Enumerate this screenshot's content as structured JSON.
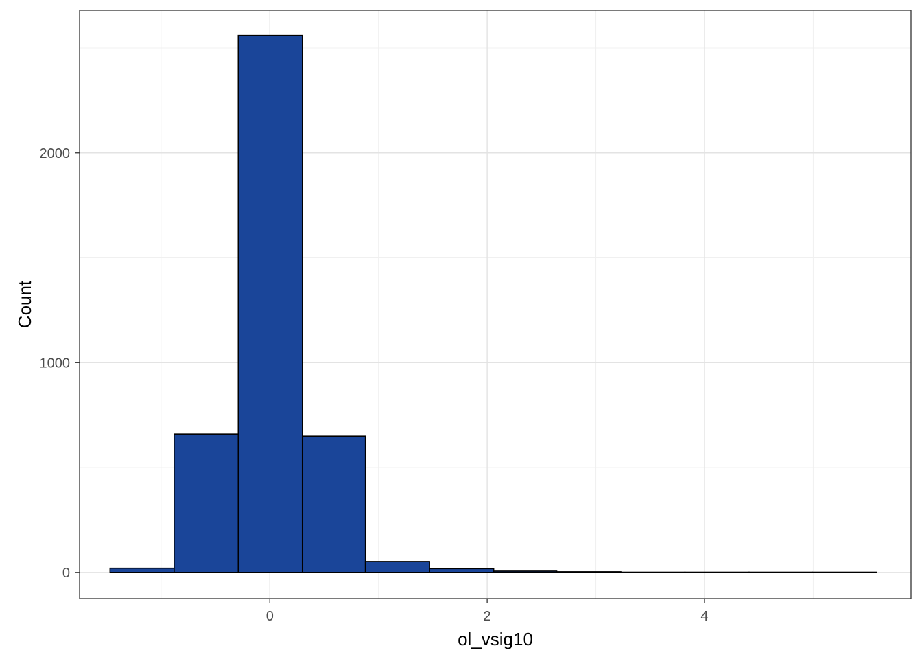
{
  "chart_data": {
    "type": "bar",
    "title": "",
    "xlabel": "ol_vsig10",
    "ylabel": "Count",
    "bar_fill": "#1a4599",
    "bar_stroke": "#000000",
    "grid": true,
    "xlim": [
      -1.75,
      5.9
    ],
    "ylim": [
      -125,
      2680
    ],
    "x_ticks": [
      0,
      2,
      4
    ],
    "x_tick_labels": [
      "0",
      "2",
      "4"
    ],
    "y_ticks": [
      0,
      1000,
      2000
    ],
    "y_tick_labels": [
      "0",
      "1000",
      "2000"
    ],
    "bins": [
      {
        "x0": -1.47,
        "x1": -0.88,
        "count": 20
      },
      {
        "x0": -0.88,
        "x1": -0.29,
        "count": 660
      },
      {
        "x0": -0.29,
        "x1": 0.3,
        "count": 2560
      },
      {
        "x0": 0.3,
        "x1": 0.88,
        "count": 650
      },
      {
        "x0": 0.88,
        "x1": 1.47,
        "count": 52
      },
      {
        "x0": 1.47,
        "x1": 2.06,
        "count": 18
      },
      {
        "x0": 2.06,
        "x1": 2.64,
        "count": 6
      },
      {
        "x0": 2.64,
        "x1": 3.23,
        "count": 3
      },
      {
        "x0": 3.23,
        "x1": 3.82,
        "count": 1
      },
      {
        "x0": 3.82,
        "x1": 4.41,
        "count": 1
      },
      {
        "x0": 4.41,
        "x1": 4.99,
        "count": 1
      },
      {
        "x0": 4.99,
        "x1": 5.58,
        "count": 1
      }
    ]
  }
}
